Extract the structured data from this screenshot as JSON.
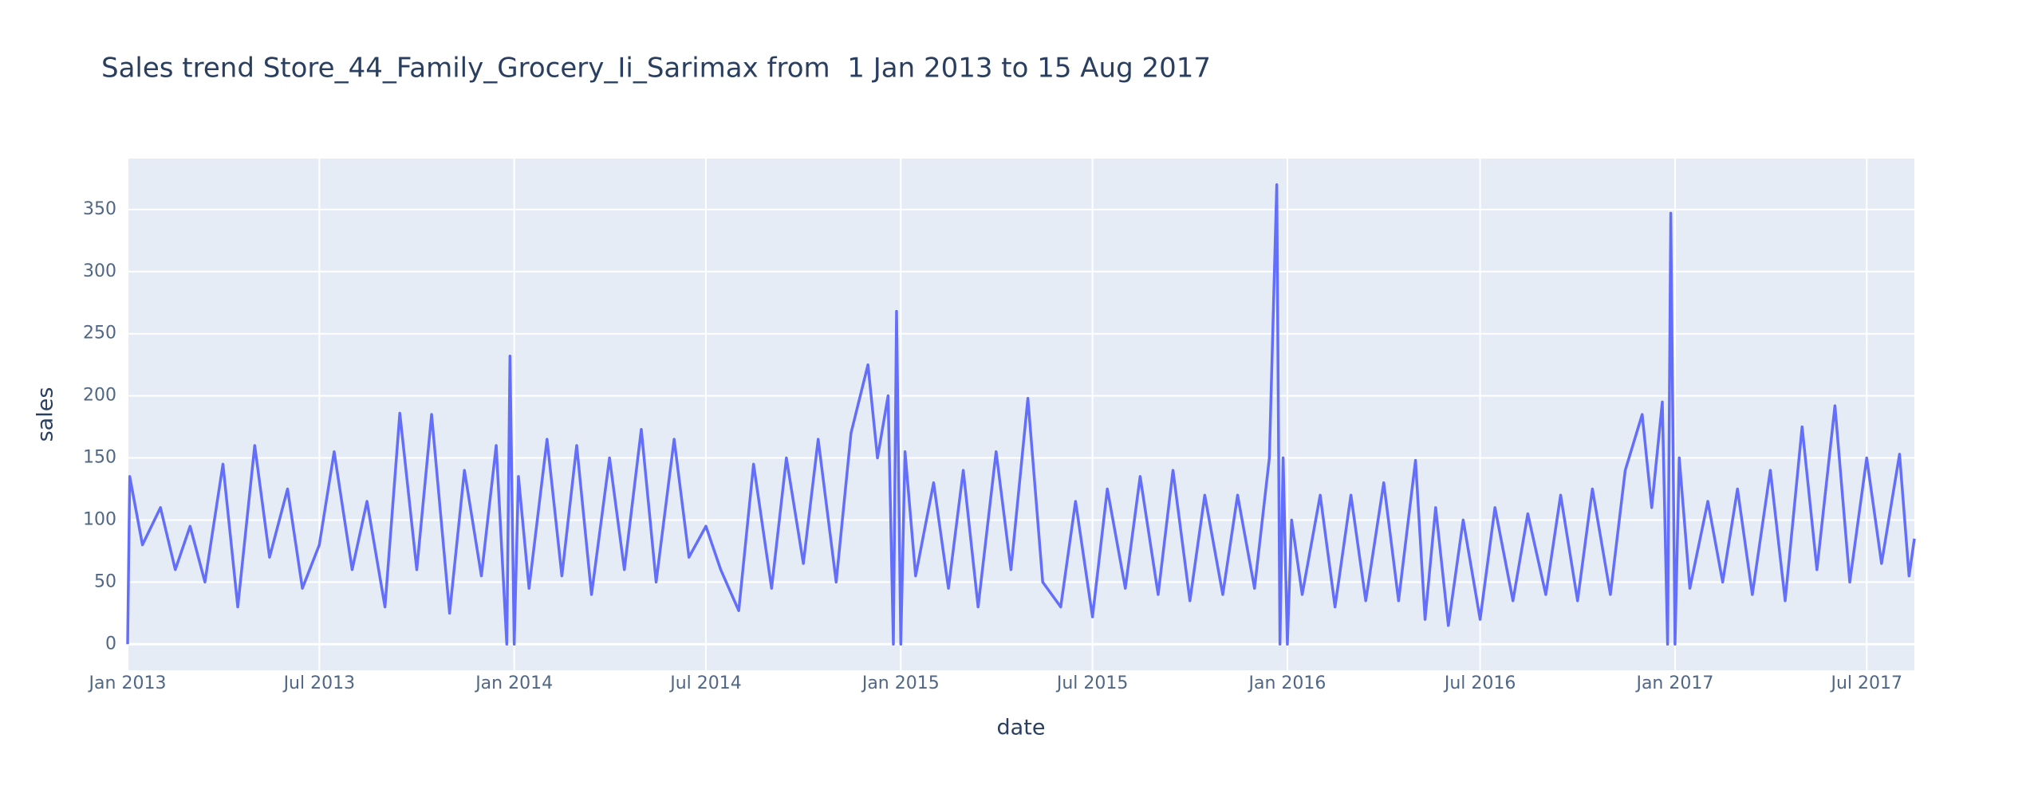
{
  "chart_data": {
    "type": "line",
    "title": "Sales trend Store_44_Family_Grocery_Ii_Sarimax from  1 Jan 2013 to 15 Aug 2017",
    "x_label": "date",
    "y_label": "sales",
    "color": "#636efa",
    "grid": true,
    "xlim": [
      "2013-01-01",
      "2017-08-15"
    ],
    "ylim": [
      -21,
      391
    ],
    "yticks": [
      0,
      50,
      100,
      150,
      200,
      250,
      300,
      350
    ],
    "xticks": [
      {
        "value": "2013-01-01",
        "label": "Jan 2013"
      },
      {
        "value": "2013-07-01",
        "label": "Jul 2013"
      },
      {
        "value": "2014-01-01",
        "label": "Jan 2014"
      },
      {
        "value": "2014-07-01",
        "label": "Jul 2014"
      },
      {
        "value": "2015-01-01",
        "label": "Jan 2015"
      },
      {
        "value": "2015-07-01",
        "label": "Jul 2015"
      },
      {
        "value": "2016-01-01",
        "label": "Jan 2016"
      },
      {
        "value": "2016-07-01",
        "label": "Jul 2016"
      },
      {
        "value": "2017-01-01",
        "label": "Jan 2017"
      },
      {
        "value": "2017-07-01",
        "label": "Jul 2017"
      }
    ],
    "x": [
      "2013-01-01",
      "2013-01-03",
      "2013-01-15",
      "2013-02-01",
      "2013-02-15",
      "2013-03-01",
      "2013-03-15",
      "2013-04-01",
      "2013-04-15",
      "2013-05-01",
      "2013-05-15",
      "2013-06-01",
      "2013-06-15",
      "2013-07-01",
      "2013-07-15",
      "2013-08-01",
      "2013-08-15",
      "2013-09-01",
      "2013-09-15",
      "2013-10-01",
      "2013-10-15",
      "2013-11-01",
      "2013-11-15",
      "2013-12-01",
      "2013-12-15",
      "2013-12-25",
      "2013-12-28",
      "2014-01-01",
      "2014-01-05",
      "2014-01-15",
      "2014-02-01",
      "2014-02-15",
      "2014-03-01",
      "2014-03-15",
      "2014-04-01",
      "2014-04-15",
      "2014-05-01",
      "2014-05-15",
      "2014-06-01",
      "2014-06-15",
      "2014-07-01",
      "2014-07-15",
      "2014-08-01",
      "2014-08-15",
      "2014-09-01",
      "2014-09-15",
      "2014-10-01",
      "2014-10-15",
      "2014-11-01",
      "2014-11-15",
      "2014-12-01",
      "2014-12-10",
      "2014-12-20",
      "2014-12-25",
      "2014-12-28",
      "2015-01-01",
      "2015-01-05",
      "2015-01-15",
      "2015-02-01",
      "2015-02-15",
      "2015-03-01",
      "2015-03-15",
      "2015-04-01",
      "2015-04-15",
      "2015-05-01",
      "2015-05-15",
      "2015-06-01",
      "2015-06-15",
      "2015-07-01",
      "2015-07-15",
      "2015-08-01",
      "2015-08-15",
      "2015-09-01",
      "2015-09-15",
      "2015-10-01",
      "2015-10-15",
      "2015-11-01",
      "2015-11-15",
      "2015-12-01",
      "2015-12-15",
      "2015-12-22",
      "2015-12-25",
      "2015-12-28",
      "2016-01-01",
      "2016-01-05",
      "2016-01-15",
      "2016-02-01",
      "2016-02-15",
      "2016-03-01",
      "2016-03-15",
      "2016-04-01",
      "2016-04-15",
      "2016-05-01",
      "2016-05-10",
      "2016-05-20",
      "2016-06-01",
      "2016-06-15",
      "2016-07-01",
      "2016-07-15",
      "2016-08-01",
      "2016-08-15",
      "2016-09-01",
      "2016-09-15",
      "2016-10-01",
      "2016-10-15",
      "2016-11-01",
      "2016-11-15",
      "2016-12-01",
      "2016-12-10",
      "2016-12-20",
      "2016-12-25",
      "2016-12-28",
      "2017-01-01",
      "2017-01-05",
      "2017-01-15",
      "2017-02-01",
      "2017-02-15",
      "2017-03-01",
      "2017-03-15",
      "2017-04-01",
      "2017-04-15",
      "2017-05-01",
      "2017-05-15",
      "2017-06-01",
      "2017-06-15",
      "2017-07-01",
      "2017-07-15",
      "2017-08-01",
      "2017-08-10",
      "2017-08-15"
    ],
    "values": [
      0,
      135,
      80,
      110,
      60,
      95,
      50,
      145,
      30,
      160,
      70,
      125,
      45,
      80,
      155,
      60,
      115,
      30,
      186,
      60,
      185,
      25,
      140,
      55,
      160,
      0,
      232,
      0,
      135,
      45,
      165,
      55,
      160,
      40,
      150,
      60,
      173,
      50,
      165,
      70,
      95,
      60,
      27,
      145,
      45,
      150,
      65,
      165,
      50,
      170,
      225,
      150,
      200,
      0,
      268,
      0,
      155,
      55,
      130,
      45,
      140,
      30,
      155,
      60,
      198,
      50,
      30,
      115,
      22,
      125,
      45,
      135,
      40,
      140,
      35,
      120,
      40,
      120,
      45,
      150,
      370,
      0,
      150,
      0,
      100,
      40,
      120,
      30,
      120,
      35,
      130,
      35,
      148,
      20,
      110,
      15,
      100,
      20,
      110,
      35,
      105,
      40,
      120,
      35,
      125,
      40,
      140,
      185,
      110,
      195,
      0,
      347,
      0,
      150,
      45,
      115,
      50,
      125,
      40,
      140,
      35,
      175,
      60,
      192,
      50,
      150,
      65,
      153,
      55,
      85
    ]
  }
}
